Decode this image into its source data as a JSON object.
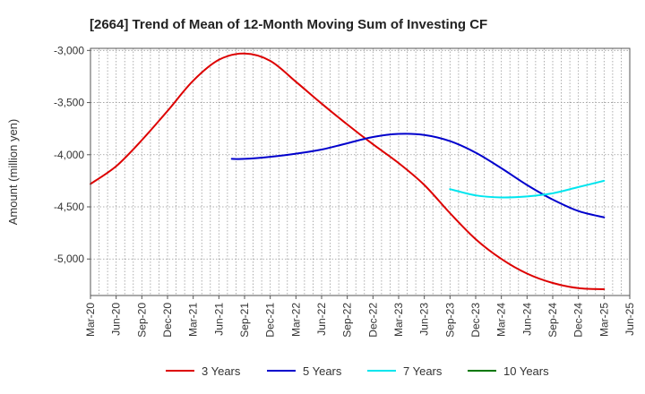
{
  "chart_data": {
    "type": "line",
    "title": "[2664]  Trend of Mean of 12-Month Moving Sum of Investing CF",
    "xlabel": "",
    "ylabel": "Amount (million yen)",
    "ylim": [
      -5350,
      -2980
    ],
    "yticks": [
      -3000,
      -3500,
      -4000,
      -4500,
      -5000
    ],
    "ytick_labels": [
      "-3,000",
      "-3,500",
      "-4,000",
      "-4,500",
      "-5,000"
    ],
    "x_categories": [
      "Mar-20",
      "Jun-20",
      "Sep-20",
      "Dec-20",
      "Mar-21",
      "Jun-21",
      "Sep-21",
      "Dec-21",
      "Mar-22",
      "Jun-22",
      "Sep-22",
      "Dec-22",
      "Mar-23",
      "Jun-23",
      "Sep-23",
      "Dec-23",
      "Mar-24",
      "Jun-24",
      "Sep-24",
      "Dec-24",
      "Mar-25",
      "Jun-25"
    ],
    "grid": true,
    "legend_position": "bottom",
    "series": [
      {
        "name": "3 Years",
        "color": "#dd0000",
        "points": [
          [
            0,
            -4280
          ],
          [
            1,
            -4110
          ],
          [
            2,
            -3860
          ],
          [
            3,
            -3580
          ],
          [
            4,
            -3290
          ],
          [
            5,
            -3090
          ],
          [
            6,
            -3030
          ],
          [
            7,
            -3100
          ],
          [
            8,
            -3300
          ],
          [
            9,
            -3510
          ],
          [
            10,
            -3710
          ],
          [
            11,
            -3900
          ],
          [
            12,
            -4080
          ],
          [
            13,
            -4290
          ],
          [
            14,
            -4560
          ],
          [
            15,
            -4810
          ],
          [
            16,
            -5000
          ],
          [
            17,
            -5140
          ],
          [
            18,
            -5230
          ],
          [
            19,
            -5280
          ],
          [
            20,
            -5290
          ]
        ]
      },
      {
        "name": "5 Years",
        "color": "#0000cc",
        "points": [
          [
            5.5,
            -4040
          ],
          [
            6,
            -4040
          ],
          [
            7,
            -4020
          ],
          [
            8,
            -3990
          ],
          [
            9,
            -3950
          ],
          [
            10,
            -3890
          ],
          [
            11,
            -3830
          ],
          [
            12,
            -3800
          ],
          [
            13,
            -3810
          ],
          [
            14,
            -3870
          ],
          [
            15,
            -3980
          ],
          [
            16,
            -4130
          ],
          [
            17,
            -4290
          ],
          [
            18,
            -4430
          ],
          [
            19,
            -4540
          ],
          [
            20,
            -4600
          ]
        ]
      },
      {
        "name": "7 Years",
        "color": "#00e5ee",
        "points": [
          [
            14,
            -4330
          ],
          [
            15,
            -4390
          ],
          [
            16,
            -4410
          ],
          [
            17,
            -4400
          ],
          [
            18,
            -4370
          ],
          [
            19,
            -4310
          ],
          [
            20,
            -4250
          ]
        ]
      },
      {
        "name": "10 Years",
        "color": "#007700",
        "points": []
      }
    ]
  }
}
